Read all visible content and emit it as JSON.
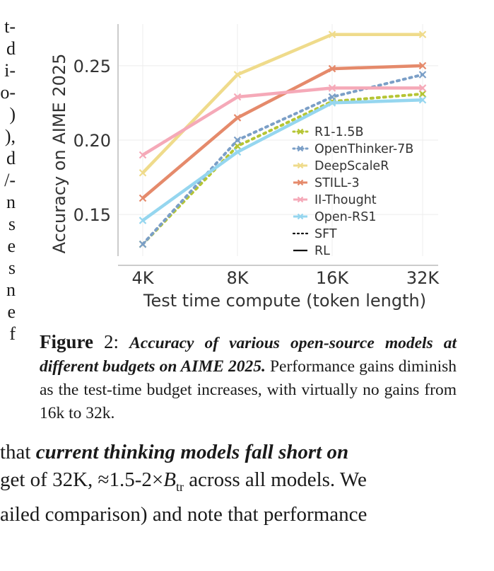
{
  "left_column_fragments": [
    "t-",
    "d",
    "i-",
    "o-",
    ")",
    "),",
    "d",
    "/-",
    "n",
    "s",
    "e",
    "s",
    "n",
    "e",
    "f"
  ],
  "figure": {
    "label": "Figure",
    "number": "2:",
    "bold_text": "Accuracy of various open-source models at different budgets on AIME 2025.",
    "text": " Performance gains diminish as the test-time budget increases, with virtually no gains from 16k to 32k."
  },
  "body_text": {
    "line1_plain": " that ",
    "line1_emph": "current thinking models fall short on",
    "line2_pre": "get of 32K, ≈1.5-2×",
    "line2_var": "B",
    "line2_sub": "tr",
    "line2_post": " across all models. We",
    "line3": "ailed comparison) and note that performance"
  },
  "chart_data": {
    "type": "line",
    "xlabel": "Test time compute (token length)",
    "ylabel": "Accuracy on AIME 2025",
    "categories": [
      "4K",
      "8K",
      "16K",
      "32K"
    ],
    "ylim": [
      0.122,
      0.278
    ],
    "yticks": [
      0.15,
      0.2,
      0.25
    ],
    "ytick_labels": [
      "0.15",
      "0.20",
      "0.25"
    ],
    "grid": true,
    "legend_position": "lower-right",
    "series": [
      {
        "name": "R1-1.5B",
        "color": "#b5c534",
        "style": "dotted",
        "values": [
          0.13,
          0.196,
          0.226,
          0.231
        ]
      },
      {
        "name": "OpenThinker-7B",
        "color": "#7b9fc7",
        "style": "dotted",
        "values": [
          0.13,
          0.2,
          0.229,
          0.244
        ]
      },
      {
        "name": "DeepScaleR",
        "color": "#efdb8b",
        "style": "solid",
        "values": [
          0.178,
          0.244,
          0.271,
          0.271
        ]
      },
      {
        "name": "STILL-3",
        "color": "#e58a6b",
        "style": "solid",
        "values": [
          0.161,
          0.215,
          0.248,
          0.25
        ]
      },
      {
        "name": "II-Thought",
        "color": "#f5a9b8",
        "style": "solid",
        "values": [
          0.19,
          0.229,
          0.235,
          0.235
        ]
      },
      {
        "name": "Open-RS1",
        "color": "#95d6ef",
        "style": "solid",
        "values": [
          0.146,
          0.192,
          0.225,
          0.227
        ]
      }
    ],
    "style_legend": [
      {
        "name": "SFT",
        "style": "dotted"
      },
      {
        "name": "RL",
        "style": "solid"
      }
    ]
  }
}
